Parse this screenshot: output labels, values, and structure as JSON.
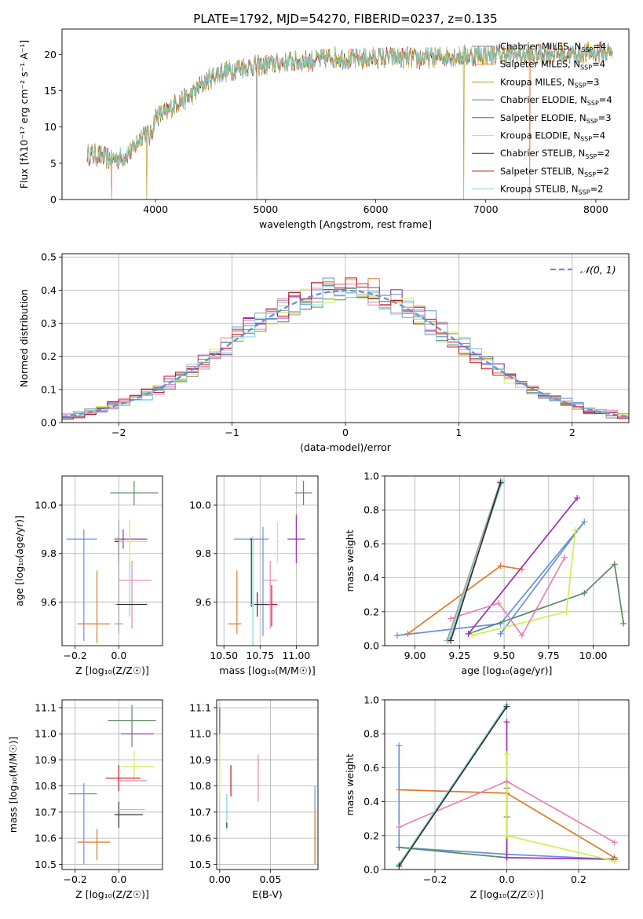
{
  "colors": {
    "chabrier_miles": "#808080",
    "salpeter_miles": "#e07a3a",
    "kroupa_miles": "#b39a1b",
    "chabrier_elodie": "#5a8a5e",
    "salpeter_elodie": "#9a30b0",
    "kroupa_elodie": "#d8e84e",
    "chabrier_stelib": "#303030",
    "salpeter_stelib": "#c0141c",
    "kroupa_stelib": "#7fd6dc",
    "blue": "#6a8fdc",
    "orange": "#e07a2a",
    "green": "#5a8a5e",
    "purple": "#9a30b0",
    "lime": "#d2ee50",
    "pink": "#e883b4",
    "gray": "#a0a0a0",
    "darkgray": "#303030",
    "red": "#c0141c",
    "cyan": "#7fd6dc"
  },
  "chart_data": [
    {
      "id": "spectrum",
      "type": "line",
      "title": "PLATE=1792, MJD=54270, FIBERID=0237, z=0.135",
      "xlabel": "wavelength [Angstrom, rest frame]",
      "ylabel": "Flux [fλ10⁻¹⁷ erg cm⁻² s⁻¹ A⁻¹]",
      "xlim": [
        3150,
        8300
      ],
      "ylim": [
        0,
        23.5
      ],
      "xticks": [
        4000,
        5000,
        6000,
        7000,
        8000
      ],
      "yticks": [
        0,
        5,
        10,
        15,
        20
      ],
      "grid": false,
      "legend_position": "top-right",
      "continuum": {
        "x": [
          3380,
          3500,
          3600,
          3700,
          3800,
          3900,
          3950,
          4000,
          4100,
          4200,
          4300,
          4400,
          4500,
          4600,
          4800,
          5000,
          5200,
          5400,
          5600,
          5800,
          6000,
          6200,
          6400,
          6600,
          6800,
          7000,
          7200,
          7400,
          7600,
          7800,
          8000,
          8150
        ],
        "y": [
          6.3,
          6.0,
          5.5,
          5.8,
          7.0,
          9.5,
          8.5,
          11.5,
          12.0,
          13.5,
          14.0,
          15.5,
          16.8,
          17.5,
          18.3,
          18.6,
          19.0,
          19.1,
          19.6,
          19.3,
          19.5,
          19.6,
          19.4,
          19.7,
          19.8,
          20.0,
          20.0,
          19.8,
          20.2,
          20.0,
          20.3,
          20.3
        ]
      },
      "noise_amplitude": 1.2,
      "dropouts": [
        {
          "series": "Salpeter MILES",
          "x": 3600
        },
        {
          "series": "Salpeter MILES",
          "x": 7400
        },
        {
          "series": "Kroupa MILES",
          "x": 3920
        },
        {
          "series": "Kroupa MILES",
          "x": 6800
        },
        {
          "series": "Chabrier MILES",
          "x": 4920
        }
      ],
      "series": [
        {
          "name": "Chabrier MILES, N_SSP=4",
          "color_key": "chabrier_miles"
        },
        {
          "name": "Salpeter MILES, N_SSP=4",
          "color_key": "salpeter_miles"
        },
        {
          "name": "Kroupa MILES, N_SSP=3",
          "color_key": "kroupa_miles"
        },
        {
          "name": "Chabrier ELODIE, N_SSP=4",
          "color_key": "chabrier_elodie"
        },
        {
          "name": "Salpeter ELODIE, N_SSP=3",
          "color_key": "salpeter_elodie"
        },
        {
          "name": "Kroupa ELODIE, N_SSP=4",
          "color_key": "kroupa_elodie"
        },
        {
          "name": "Chabrier STELIB, N_SSP=2",
          "color_key": "chabrier_stelib"
        },
        {
          "name": "Salpeter STELIB, N_SSP=2",
          "color_key": "salpeter_stelib"
        },
        {
          "name": "Kroupa STELIB, N_SSP=2",
          "color_key": "kroupa_stelib"
        }
      ]
    },
    {
      "id": "residuals",
      "type": "histogram",
      "xlabel": "(data-model)/error",
      "ylabel": "Normed distribution",
      "xlim": [
        -2.5,
        2.5
      ],
      "ylim": [
        0,
        0.51
      ],
      "xticks": [
        -2,
        -1,
        0,
        1,
        2
      ],
      "yticks": [
        0.0,
        0.1,
        0.2,
        0.3,
        0.4,
        0.5
      ],
      "grid": true,
      "legend_position": "top-right",
      "reference_curve": {
        "name": "𝒩(0, 1)",
        "mean": 0,
        "sigma": 1,
        "color_key": "blue"
      },
      "bin_width": 0.1,
      "series_color_keys": [
        "blue",
        "orange",
        "green",
        "purple",
        "lime",
        "pink",
        "gray",
        "red",
        "cyan"
      ]
    },
    {
      "id": "age_vs_Z",
      "type": "errorbar",
      "xlabel": "Z [log₁₀(Z/Z☉)]",
      "ylabel": "age  [log₁₀(age/yr)]",
      "xlim": [
        -0.26,
        0.2
      ],
      "ylim": [
        9.42,
        10.12
      ],
      "xticks": [
        -0.2,
        0.0
      ],
      "yticks": [
        9.6,
        9.8,
        10.0
      ],
      "grid": true,
      "points": [
        {
          "x": -0.1,
          "y": 9.51,
          "xerr": [
            0.09,
            0.06
          ],
          "yerr": [
            0.08,
            0.22
          ],
          "color_key": "orange"
        },
        {
          "x": -0.16,
          "y": 9.86,
          "xerr": [
            0.08,
            0.06
          ],
          "yerr": [
            0.42,
            0.04
          ],
          "color_key": "blue"
        },
        {
          "x": 0.02,
          "y": 9.86,
          "xerr": [
            0.04,
            0.11
          ],
          "yerr": [
            0.04,
            0.04
          ],
          "color_key": "purple"
        },
        {
          "x": 0.07,
          "y": 10.05,
          "xerr": [
            0.11,
            0.11
          ],
          "yerr": [
            0.05,
            0.05
          ],
          "color_key": "green"
        },
        {
          "x": 0.0,
          "y": 9.85,
          "xerr": [
            0.02,
            0.02
          ],
          "yerr": [
            0.09,
            0.02
          ],
          "color_key": "darkgray"
        },
        {
          "x": 0.05,
          "y": 9.85,
          "xerr": [
            0.05,
            0.08
          ],
          "yerr": [
            0.1,
            0.09
          ],
          "color_key": "lime"
        },
        {
          "x": 0.06,
          "y": 9.69,
          "xerr": [
            0.06,
            0.09
          ],
          "yerr": [
            0.2,
            0.08
          ],
          "color_key": "pink"
        },
        {
          "x": 0.0,
          "y": 9.51,
          "xerr": [
            0.02,
            0.02
          ],
          "yerr": [
            0.04,
            0.43
          ],
          "color_key": "gray"
        },
        {
          "x": 0.05,
          "y": 9.59,
          "xerr": [
            0.07,
            0.07
          ],
          "yerr": [
            0.05,
            0.17
          ],
          "color_key": "cyan"
        },
        {
          "x": 0.05,
          "y": 9.59,
          "xerr": [
            0.06,
            0.08
          ],
          "yerr": [
            0.0,
            0.0
          ],
          "color_key": "darkgray"
        }
      ]
    },
    {
      "id": "age_vs_mass",
      "type": "errorbar",
      "xlabel": "mass [log₁₀(M/M☉)]",
      "ylabel": "",
      "xlim": [
        10.45,
        11.15
      ],
      "ylim": [
        9.42,
        10.12
      ],
      "xticks": [
        10.5,
        10.75,
        11.0
      ],
      "ytick_labels_shown": [
        9.6,
        9.8,
        10.0
      ],
      "grid": true,
      "points": [
        {
          "x": 10.59,
          "y": 9.51,
          "xerr": [
            0.06,
            0.03
          ],
          "yerr": [
            0.04,
            0.22
          ],
          "color_key": "orange"
        },
        {
          "x": 10.77,
          "y": 9.86,
          "xerr": [
            0.2,
            0.04
          ],
          "yerr": [
            0.4,
            0.05
          ],
          "color_key": "blue"
        },
        {
          "x": 10.69,
          "y": 9.86,
          "xerr": [
            0.01,
            0.01
          ],
          "yerr": [
            0.28,
            0.0
          ],
          "color_key": "darkgray"
        },
        {
          "x": 10.7,
          "y": 9.59,
          "xerr": [
            0.02,
            0.07
          ],
          "yerr": [
            0.2,
            0.28
          ],
          "color_key": "cyan"
        },
        {
          "x": 10.83,
          "y": 9.59,
          "xerr": [
            0.04,
            0.04
          ],
          "yerr": [
            0.09,
            0.08
          ],
          "color_key": "red"
        },
        {
          "x": 10.87,
          "y": 9.85,
          "xerr": [
            0.01,
            0.01
          ],
          "yerr": [
            0.09,
            0.08
          ],
          "color_key": "lime"
        },
        {
          "x": 10.82,
          "y": 9.69,
          "xerr": [
            0.05,
            0.05
          ],
          "yerr": [
            0.2,
            0.08
          ],
          "color_key": "pink"
        },
        {
          "x": 11.0,
          "y": 9.86,
          "xerr": [
            0.06,
            0.06
          ],
          "yerr": [
            0.1,
            0.1
          ],
          "color_key": "purple"
        },
        {
          "x": 11.05,
          "y": 10.05,
          "xerr": [
            0.06,
            0.06
          ],
          "yerr": [
            0.05,
            0.05
          ],
          "color_key": "green"
        },
        {
          "x": 10.73,
          "y": 9.59,
          "xerr": [
            0.02,
            0.07
          ],
          "yerr": [
            0.05,
            0.05
          ],
          "color_key": "darkgray"
        }
      ]
    },
    {
      "id": "massweight_vs_age",
      "type": "line",
      "xlabel": "age  [log₁₀(age/yr)]",
      "ylabel": "mass weight",
      "xlim": [
        8.83,
        10.2
      ],
      "ylim": [
        0,
        1.0
      ],
      "xticks": [
        9.0,
        9.25,
        9.5,
        9.75,
        10.0
      ],
      "yticks": [
        0.0,
        0.2,
        0.4,
        0.6,
        0.8,
        1.0
      ],
      "grid": true,
      "series": [
        {
          "color_key": "blue",
          "x": [
            8.9,
            9.48,
            9.95,
            9.48
          ],
          "y": [
            0.06,
            0.13,
            0.73,
            0.07
          ]
        },
        {
          "color_key": "orange",
          "x": [
            8.96,
            9.48,
            9.6
          ],
          "y": [
            0.07,
            0.47,
            0.45
          ]
        },
        {
          "color_key": "green",
          "x": [
            9.3,
            9.95,
            10.12,
            10.17
          ],
          "y": [
            0.07,
            0.31,
            0.48,
            0.13
          ]
        },
        {
          "color_key": "purple",
          "x": [
            9.3,
            9.91
          ],
          "y": [
            0.07,
            0.87
          ]
        },
        {
          "color_key": "lime",
          "x": [
            9.32,
            9.85,
            9.9
          ],
          "y": [
            0.06,
            0.2,
            0.68
          ]
        },
        {
          "color_key": "pink",
          "x": [
            9.2,
            9.47,
            9.6,
            9.84
          ],
          "y": [
            0.16,
            0.25,
            0.06,
            0.52
          ]
        },
        {
          "color_key": "gray",
          "x": [
            9.18,
            9.48
          ],
          "y": [
            0.03,
            0.97
          ]
        },
        {
          "color_key": "cyan",
          "x": [
            9.19,
            9.49
          ],
          "y": [
            0.03,
            0.97
          ]
        },
        {
          "color_key": "darkgray",
          "x": [
            9.2,
            9.48
          ],
          "y": [
            0.03,
            0.96
          ]
        }
      ]
    },
    {
      "id": "mass_vs_Z",
      "type": "errorbar",
      "xlabel": "Z [log₁₀(Z/Z☉)]",
      "ylabel": "mass [log₁₀(M/M☉)]",
      "xlim": [
        -0.26,
        0.2
      ],
      "ylim": [
        10.48,
        11.13
      ],
      "xticks": [
        -0.2,
        0.0
      ],
      "yticks": [
        10.5,
        10.6,
        10.7,
        10.8,
        10.9,
        11.0,
        11.1
      ],
      "grid": true,
      "points": [
        {
          "x": -0.1,
          "y": 10.585,
          "xerr": [
            0.09,
            0.06
          ],
          "yerr": [
            0.07,
            0.05
          ],
          "color_key": "orange"
        },
        {
          "x": -0.16,
          "y": 10.77,
          "xerr": [
            0.07,
            0.06
          ],
          "yerr": [
            0.27,
            0.04
          ],
          "color_key": "blue"
        },
        {
          "x": 0.06,
          "y": 11.05,
          "xerr": [
            0.11,
            0.11
          ],
          "yerr": [
            0.1,
            0.06
          ],
          "color_key": "green"
        },
        {
          "x": 0.06,
          "y": 11.0,
          "xerr": [
            0.05,
            0.1
          ],
          "yerr": [
            0.0,
            0.0
          ],
          "color_key": "purple"
        },
        {
          "x": 0.07,
          "y": 10.875,
          "xerr": [
            0.06,
            0.09
          ],
          "yerr": [
            0.05,
            0.06
          ],
          "color_key": "lime"
        },
        {
          "x": 0.0,
          "y": 10.83,
          "xerr": [
            0.06,
            0.1
          ],
          "yerr": [
            0.05,
            0.05
          ],
          "color_key": "red"
        },
        {
          "x": 0.04,
          "y": 10.82,
          "xerr": [
            0.05,
            0.09
          ],
          "yerr": [
            0.0,
            0.0
          ],
          "color_key": "pink"
        },
        {
          "x": 0.0,
          "y": 10.69,
          "xerr": [
            0.02,
            0.11
          ],
          "yerr": [
            0.05,
            0.05
          ],
          "color_key": "darkgray"
        },
        {
          "x": 0.04,
          "y": 10.71,
          "xerr": [
            0.04,
            0.08
          ],
          "yerr": [
            0.0,
            0.0
          ],
          "color_key": "cyan"
        }
      ]
    },
    {
      "id": "mass_vs_ebv",
      "type": "errorbar",
      "xlabel": "E(B-V)",
      "ylabel": "",
      "xlim": [
        -0.003,
        0.097
      ],
      "ylim": [
        10.48,
        11.13
      ],
      "xticks": [
        0.0,
        0.05
      ],
      "ytick_labels_shown": [
        10.5,
        10.6,
        10.7,
        10.8,
        10.9,
        11.0,
        11.1
      ],
      "grid": true,
      "points": [
        {
          "x": 0.0,
          "y": 11.03,
          "xerr": [
            0.0,
            0.0
          ],
          "yerr": [
            0.07,
            0.07
          ],
          "color_key": "purple"
        },
        {
          "x": 0.0,
          "y": 10.88,
          "xerr": [
            0.0,
            0.0
          ],
          "yerr": [
            0.12,
            0.12
          ],
          "color_key": "lime"
        },
        {
          "x": 0.007,
          "y": 10.7,
          "xerr": [
            0.0,
            0.0
          ],
          "yerr": [
            0.07,
            0.07
          ],
          "color_key": "cyan"
        },
        {
          "x": 0.007,
          "y": 10.66,
          "xerr": [
            0.0,
            0.0
          ],
          "yerr": [
            0.02,
            0.0
          ],
          "color_key": "darkgray"
        },
        {
          "x": 0.011,
          "y": 10.82,
          "xerr": [
            0.0,
            0.0
          ],
          "yerr": [
            0.06,
            0.06
          ],
          "color_key": "red"
        },
        {
          "x": 0.038,
          "y": 10.83,
          "xerr": [
            0.0,
            0.0
          ],
          "yerr": [
            0.09,
            0.09
          ],
          "color_key": "pink"
        },
        {
          "x": 0.094,
          "y": 10.65,
          "xerr": [
            0.0,
            0.0
          ],
          "yerr": [
            0.15,
            0.15
          ],
          "color_key": "blue"
        },
        {
          "x": 0.094,
          "y": 10.6,
          "xerr": [
            0.0,
            0.0
          ],
          "yerr": [
            0.1,
            0.1
          ],
          "color_key": "orange"
        }
      ]
    },
    {
      "id": "massweight_vs_Z",
      "type": "line",
      "xlabel": "Z [log₁₀(Z/Z☉)]",
      "ylabel": "mass weight",
      "xlim": [
        -0.34,
        0.34
      ],
      "ylim": [
        0,
        1.0
      ],
      "xticks": [
        -0.2,
        0.0,
        0.2
      ],
      "yticks": [
        0.0,
        0.2,
        0.4,
        0.6,
        0.8,
        1.0
      ],
      "grid": true,
      "series": [
        {
          "color_key": "blue",
          "x": [
            -0.3,
            -0.3,
            0.0,
            0.3
          ],
          "y": [
            0.73,
            0.13,
            0.09,
            0.06
          ]
        },
        {
          "color_key": "orange",
          "x": [
            -0.3,
            0.0,
            0.3
          ],
          "y": [
            0.47,
            0.45,
            0.07
          ]
        },
        {
          "color_key": "green",
          "x": [
            -0.3,
            0.0,
            0.0,
            0.0
          ],
          "y": [
            0.13,
            0.07,
            0.31,
            0.48
          ]
        },
        {
          "color_key": "purple",
          "x": [
            0.0,
            0.0,
            0.3
          ],
          "y": [
            0.87,
            0.07,
            0.06
          ]
        },
        {
          "color_key": "lime",
          "x": [
            0.0,
            0.0,
            0.3
          ],
          "y": [
            0.68,
            0.2,
            0.05
          ]
        },
        {
          "color_key": "pink",
          "x": [
            -0.3,
            0.0,
            0.3
          ],
          "y": [
            0.25,
            0.52,
            0.16
          ]
        },
        {
          "color_key": "gray",
          "x": [
            -0.3,
            0.0
          ],
          "y": [
            0.03,
            0.97
          ]
        },
        {
          "color_key": "cyan",
          "x": [
            -0.3,
            0.0
          ],
          "y": [
            0.03,
            0.97
          ]
        },
        {
          "color_key": "darkgray",
          "x": [
            -0.3,
            0.0
          ],
          "y": [
            0.02,
            0.96
          ]
        }
      ]
    }
  ]
}
